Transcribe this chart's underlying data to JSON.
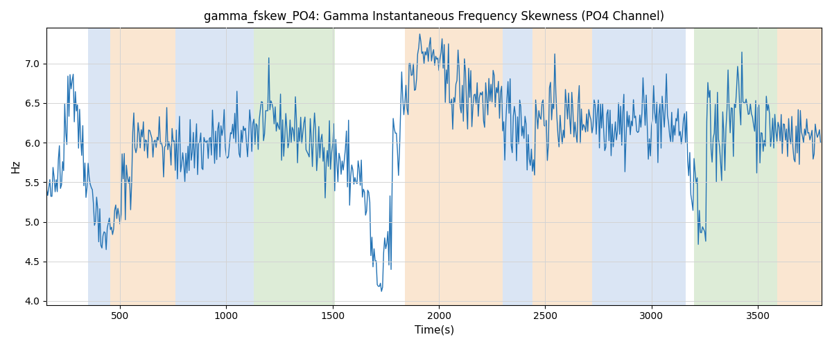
{
  "title": "gamma_fskew_PO4: Gamma Instantaneous Frequency Skewness (PO4 Channel)",
  "xlabel": "Time(s)",
  "ylabel": "Hz",
  "xlim": [
    155,
    3800
  ],
  "ylim": [
    3.95,
    7.45
  ],
  "line_color": "#2272b4",
  "line_width": 1.0,
  "grid": true,
  "bands": [
    {
      "start": 350,
      "end": 455,
      "color": "#aec6e8",
      "alpha": 0.45
    },
    {
      "start": 455,
      "end": 760,
      "color": "#f5c99a",
      "alpha": 0.45
    },
    {
      "start": 760,
      "end": 1130,
      "color": "#aec6e8",
      "alpha": 0.45
    },
    {
      "start": 1130,
      "end": 1510,
      "color": "#b5d7a8",
      "alpha": 0.45
    },
    {
      "start": 1840,
      "end": 2300,
      "color": "#f5c99a",
      "alpha": 0.45
    },
    {
      "start": 2300,
      "end": 2440,
      "color": "#aec6e8",
      "alpha": 0.45
    },
    {
      "start": 2440,
      "end": 2720,
      "color": "#f5c99a",
      "alpha": 0.45
    },
    {
      "start": 2720,
      "end": 3160,
      "color": "#aec6e8",
      "alpha": 0.45
    },
    {
      "start": 3200,
      "end": 3590,
      "color": "#b5d7a8",
      "alpha": 0.45
    },
    {
      "start": 3590,
      "end": 3800,
      "color": "#f5c99a",
      "alpha": 0.45
    }
  ],
  "xticks": [
    500,
    1000,
    1500,
    2000,
    2500,
    3000,
    3500
  ],
  "yticks": [
    4.0,
    4.5,
    5.0,
    5.5,
    6.0,
    6.5,
    7.0
  ],
  "segments": [
    {
      "t0": 155,
      "t1": 185,
      "base": 5.35,
      "noise": 0.12
    },
    {
      "t0": 185,
      "t1": 210,
      "base": 5.45,
      "noise": 0.15
    },
    {
      "t0": 210,
      "t1": 240,
      "base": 5.9,
      "noise": 0.25
    },
    {
      "t0": 240,
      "t1": 265,
      "base": 6.4,
      "noise": 0.3
    },
    {
      "t0": 265,
      "t1": 285,
      "base": 6.85,
      "noise": 0.12
    },
    {
      "t0": 285,
      "t1": 305,
      "base": 6.55,
      "noise": 0.25
    },
    {
      "t0": 305,
      "t1": 330,
      "base": 6.05,
      "noise": 0.2
    },
    {
      "t0": 330,
      "t1": 355,
      "base": 5.7,
      "noise": 0.2
    },
    {
      "t0": 355,
      "t1": 380,
      "base": 5.45,
      "noise": 0.15
    },
    {
      "t0": 380,
      "t1": 410,
      "base": 5.1,
      "noise": 0.2
    },
    {
      "t0": 410,
      "t1": 440,
      "base": 4.75,
      "noise": 0.12
    },
    {
      "t0": 440,
      "t1": 470,
      "base": 4.95,
      "noise": 0.1
    },
    {
      "t0": 470,
      "t1": 510,
      "base": 5.05,
      "noise": 0.12
    },
    {
      "t0": 510,
      "t1": 560,
      "base": 5.55,
      "noise": 0.2
    },
    {
      "t0": 560,
      "t1": 620,
      "base": 6.05,
      "noise": 0.22
    },
    {
      "t0": 620,
      "t1": 680,
      "base": 6.1,
      "noise": 0.2
    },
    {
      "t0": 680,
      "t1": 750,
      "base": 5.95,
      "noise": 0.2
    },
    {
      "t0": 750,
      "t1": 830,
      "base": 5.85,
      "noise": 0.22
    },
    {
      "t0": 830,
      "t1": 920,
      "base": 5.95,
      "noise": 0.22
    },
    {
      "t0": 920,
      "t1": 1020,
      "base": 6.0,
      "noise": 0.22
    },
    {
      "t0": 1020,
      "t1": 1090,
      "base": 6.05,
      "noise": 0.22
    },
    {
      "t0": 1090,
      "t1": 1160,
      "base": 6.2,
      "noise": 0.25
    },
    {
      "t0": 1160,
      "t1": 1250,
      "base": 6.3,
      "noise": 0.2
    },
    {
      "t0": 1250,
      "t1": 1380,
      "base": 6.15,
      "noise": 0.2
    },
    {
      "t0": 1380,
      "t1": 1510,
      "base": 5.95,
      "noise": 0.2
    },
    {
      "t0": 1510,
      "t1": 1580,
      "base": 5.75,
      "noise": 0.25
    },
    {
      "t0": 1580,
      "t1": 1640,
      "base": 5.6,
      "noise": 0.2
    },
    {
      "t0": 1640,
      "t1": 1680,
      "base": 5.25,
      "noise": 0.2
    },
    {
      "t0": 1680,
      "t1": 1710,
      "base": 4.55,
      "noise": 0.2
    },
    {
      "t0": 1710,
      "t1": 1740,
      "base": 4.12,
      "noise": 0.08
    },
    {
      "t0": 1740,
      "t1": 1780,
      "base": 4.7,
      "noise": 0.3
    },
    {
      "t0": 1780,
      "t1": 1820,
      "base": 5.9,
      "noise": 0.35
    },
    {
      "t0": 1820,
      "t1": 1860,
      "base": 6.6,
      "noise": 0.3
    },
    {
      "t0": 1860,
      "t1": 1900,
      "base": 6.95,
      "noise": 0.2
    },
    {
      "t0": 1900,
      "t1": 1960,
      "base": 7.15,
      "noise": 0.15
    },
    {
      "t0": 1960,
      "t1": 2020,
      "base": 7.05,
      "noise": 0.18
    },
    {
      "t0": 2020,
      "t1": 2100,
      "base": 6.7,
      "noise": 0.25
    },
    {
      "t0": 2100,
      "t1": 2200,
      "base": 6.6,
      "noise": 0.25
    },
    {
      "t0": 2200,
      "t1": 2310,
      "base": 6.5,
      "noise": 0.2
    },
    {
      "t0": 2310,
      "t1": 2410,
      "base": 6.35,
      "noise": 0.28
    },
    {
      "t0": 2410,
      "t1": 2460,
      "base": 5.95,
      "noise": 0.3
    },
    {
      "t0": 2460,
      "t1": 2560,
      "base": 6.35,
      "noise": 0.25
    },
    {
      "t0": 2560,
      "t1": 2680,
      "base": 6.3,
      "noise": 0.22
    },
    {
      "t0": 2680,
      "t1": 2800,
      "base": 6.35,
      "noise": 0.25
    },
    {
      "t0": 2800,
      "t1": 2950,
      "base": 6.25,
      "noise": 0.25
    },
    {
      "t0": 2950,
      "t1": 3080,
      "base": 6.3,
      "noise": 0.25
    },
    {
      "t0": 3080,
      "t1": 3170,
      "base": 6.2,
      "noise": 0.22
    },
    {
      "t0": 3170,
      "t1": 3220,
      "base": 5.5,
      "noise": 0.2
    },
    {
      "t0": 3220,
      "t1": 3260,
      "base": 4.85,
      "noise": 0.12
    },
    {
      "t0": 3260,
      "t1": 3350,
      "base": 6.1,
      "noise": 0.35
    },
    {
      "t0": 3350,
      "t1": 3480,
      "base": 6.5,
      "noise": 0.25
    },
    {
      "t0": 3480,
      "t1": 3590,
      "base": 6.2,
      "noise": 0.22
    },
    {
      "t0": 3590,
      "t1": 3680,
      "base": 6.1,
      "noise": 0.22
    },
    {
      "t0": 3680,
      "t1": 3800,
      "base": 6.1,
      "noise": 0.18
    }
  ]
}
